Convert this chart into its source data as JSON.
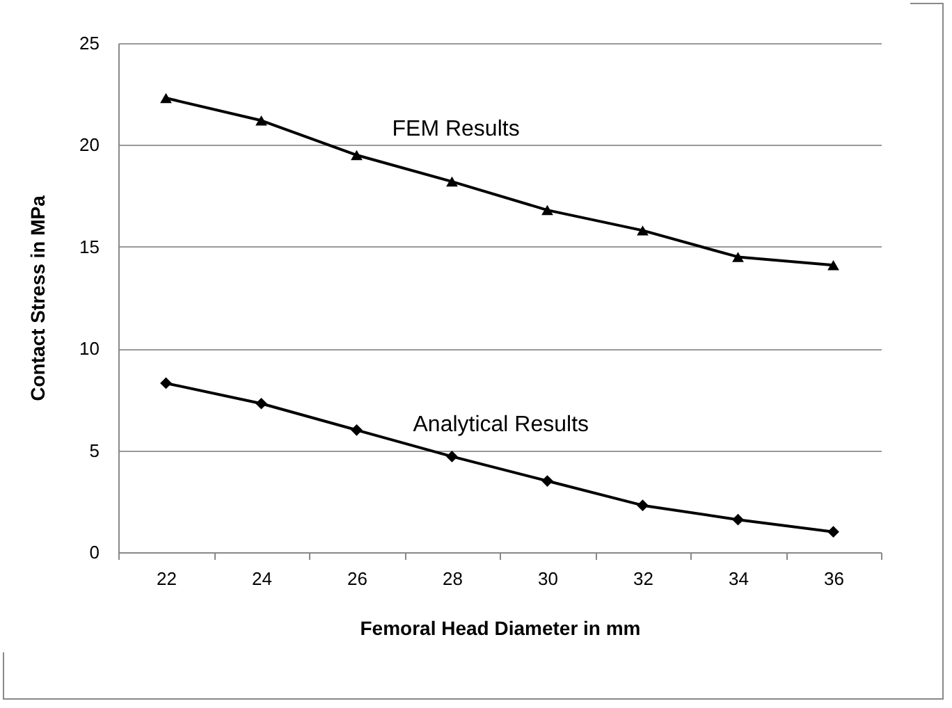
{
  "chart_data": {
    "type": "line",
    "xlabel": "Femoral Head Diameter in mm",
    "ylabel": "Contact Stress in MPa",
    "categories": [
      "22",
      "24",
      "26",
      "28",
      "30",
      "32",
      "34",
      "36"
    ],
    "ylim": [
      0,
      25
    ],
    "yticks": [
      0,
      5,
      10,
      15,
      20,
      25
    ],
    "grid": "y",
    "series": [
      {
        "name": "FEM Results",
        "color": "#000000",
        "marker": "triangle",
        "values": [
          22.3,
          21.2,
          19.5,
          18.2,
          16.8,
          15.8,
          14.5,
          14.1
        ]
      },
      {
        "name": "Analytical Results",
        "color": "#000000",
        "marker": "diamond",
        "values": [
          8.3,
          7.3,
          6.0,
          4.7,
          3.5,
          2.3,
          1.6,
          1.0
        ]
      }
    ]
  }
}
